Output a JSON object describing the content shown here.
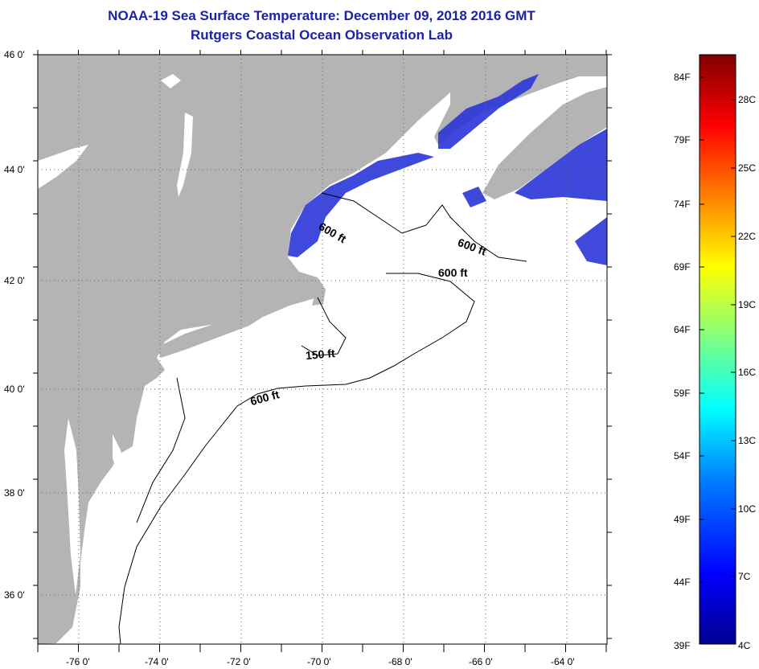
{
  "header": {
    "title": "NOAA-19 Sea Surface Temperature:  December 09, 2018 2016 GMT",
    "subtitle": "Rutgers Coastal Ocean Observation Lab"
  },
  "map": {
    "lat_labels": [
      "46 0'",
      "44 0'",
      "42 0'",
      "40 0'",
      "38 0'",
      "36 0'"
    ],
    "lon_labels": [
      "-76 0'",
      "-74 0'",
      "-72 0'",
      "-70 0'",
      "-68 0'",
      "-66 0'",
      "-64 0'"
    ],
    "contour_labels": [
      "600 ft",
      "600 ft",
      "600 ft",
      "150 ft",
      "600 ft"
    ],
    "colors": {
      "land": "#b4b4b4",
      "ocean": "#ffffff",
      "sst_cold": "#2a36d8"
    }
  },
  "colorbar": {
    "fahrenheit_labels": [
      "84F",
      "79F",
      "74F",
      "69F",
      "64F",
      "59F",
      "54F",
      "49F",
      "44F",
      "39F"
    ],
    "celsius_labels": [
      "28C",
      "25C",
      "22C",
      "19C",
      "16C",
      "13C",
      "10C",
      "7C",
      "4C"
    ],
    "color_stops": [
      "#000090",
      "#0000ff",
      "#0080ff",
      "#00ffff",
      "#80ff80",
      "#ffff00",
      "#ff8000",
      "#ff0000",
      "#800000"
    ]
  }
}
